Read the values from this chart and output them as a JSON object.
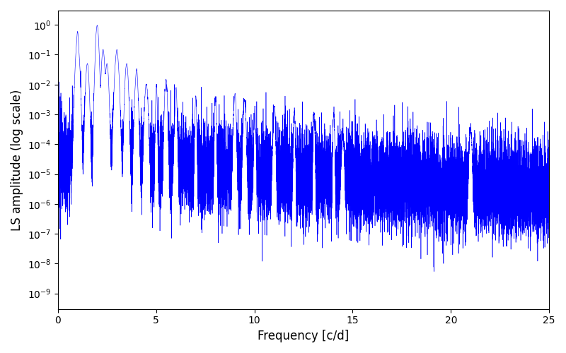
{
  "title": "",
  "xlabel": "Frequency [c/d]",
  "ylabel": "LS amplitude (log scale)",
  "line_color": "#0000ff",
  "line_width": 0.4,
  "freq_min": 0.0,
  "freq_max": 25.0,
  "n_points": 15000,
  "ylim_min": 3e-10,
  "ylim_max": 3.0,
  "xlim_min": 0.0,
  "xlim_max": 25.0,
  "xticks": [
    0,
    5,
    10,
    15,
    20,
    25
  ],
  "background_color": "#ffffff",
  "seed": 17,
  "peak_freqs": [
    1.0,
    1.5,
    2.0,
    2.3,
    2.5,
    3.0,
    3.5,
    4.0,
    4.5,
    5.5,
    6.0,
    9.0,
    9.5,
    11.0,
    14.5,
    21.0
  ],
  "peak_amplitudes": [
    0.3,
    0.05,
    0.9,
    0.15,
    0.05,
    0.12,
    0.05,
    0.02,
    0.01,
    0.015,
    0.002,
    0.003,
    0.003,
    0.0004,
    0.00015,
    0.0003
  ],
  "peak_widths": [
    0.06,
    0.05,
    0.05,
    0.05,
    0.05,
    0.06,
    0.05,
    0.05,
    0.05,
    0.04,
    0.04,
    0.04,
    0.04,
    0.04,
    0.04,
    0.04
  ],
  "noise_sigma": 1.8,
  "base_level": 3e-05,
  "base_decay": 0.8
}
